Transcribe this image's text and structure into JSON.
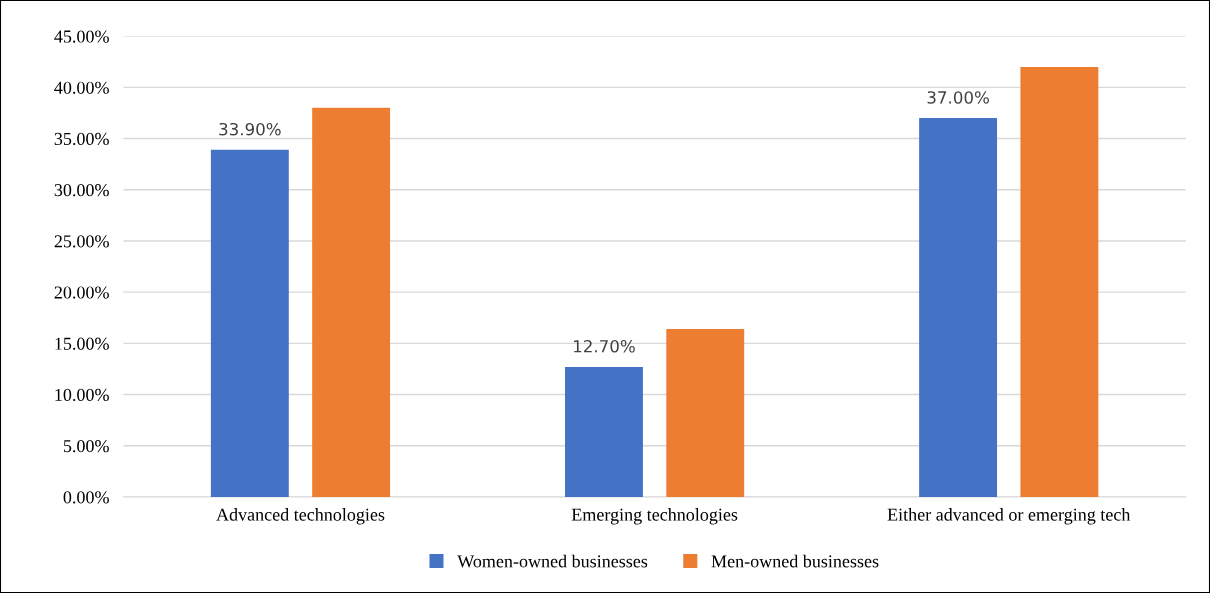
{
  "chart_data": {
    "type": "bar",
    "categories": [
      "Advanced technologies",
      "Emerging technologies",
      "Either advanced or emerging tech"
    ],
    "series": [
      {
        "name": "Women-owned businesses",
        "color": "#4472c4",
        "values": [
          33.9,
          12.7,
          37.0
        ],
        "value_labels": [
          "33.90%",
          "12.70%",
          "37.00%"
        ]
      },
      {
        "name": "Men-owned businesses",
        "color": "#ed7d31",
        "values": [
          38.0,
          16.4,
          42.0
        ]
      }
    ],
    "ylim": [
      0,
      45
    ],
    "yticks": [
      {
        "value": 0,
        "label": "0.00%"
      },
      {
        "value": 5,
        "label": "5.00%"
      },
      {
        "value": 10,
        "label": "10.00%"
      },
      {
        "value": 15,
        "label": "15.00%"
      },
      {
        "value": 20,
        "label": "20.00%"
      },
      {
        "value": 25,
        "label": "25.00%"
      },
      {
        "value": 30,
        "label": "30.00%"
      },
      {
        "value": 35,
        "label": "35.00%"
      },
      {
        "value": 40,
        "label": "40.00%"
      },
      {
        "value": 45,
        "label": "45.00%"
      }
    ],
    "grid": "y",
    "legend": "bottom"
  }
}
